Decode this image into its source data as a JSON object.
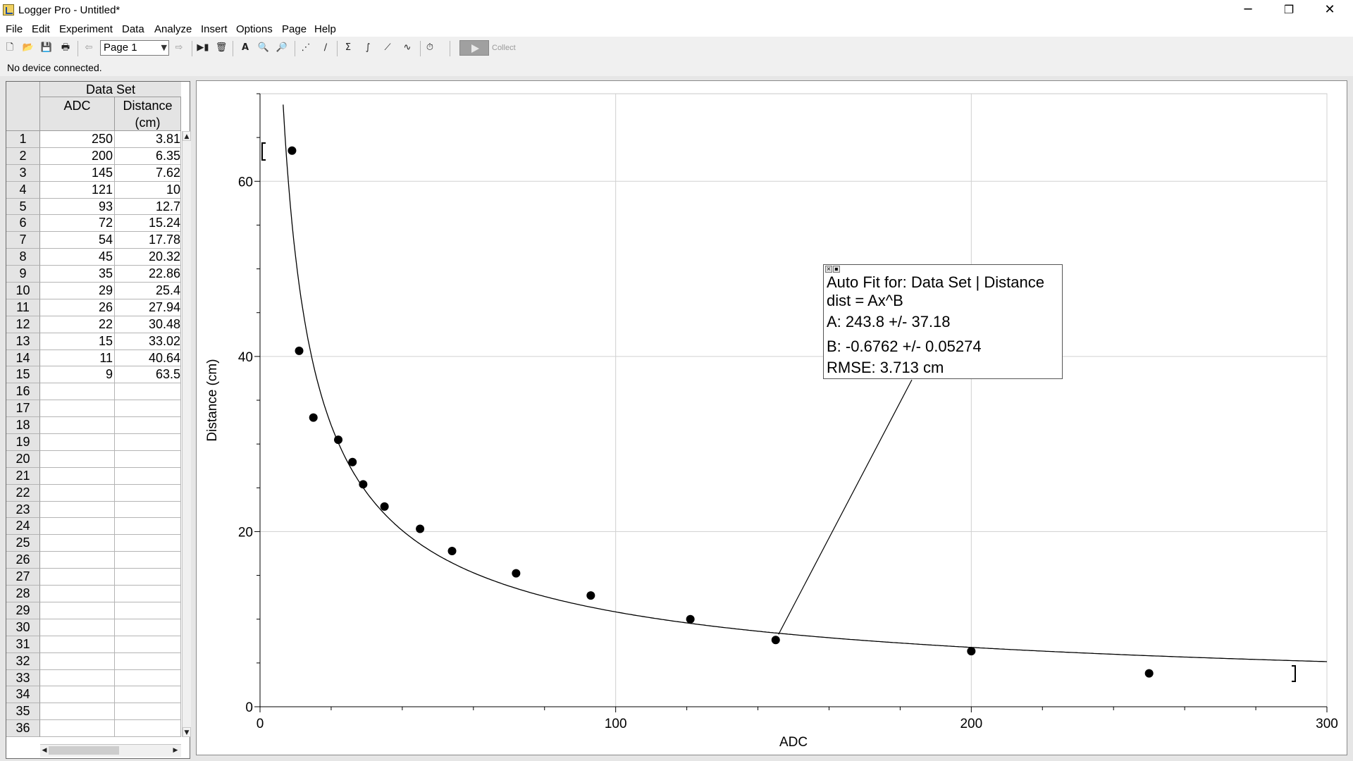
{
  "window": {
    "title": "Logger Pro - Untitled*",
    "minimize": "─",
    "maximize": "❐",
    "close": "✕"
  },
  "menu": [
    "File",
    "Edit",
    "Experiment",
    "Data",
    "Analyze",
    "Insert",
    "Options",
    "Page",
    "Help"
  ],
  "toolbar": {
    "page_select": "Page 1",
    "collect_label": "Collect"
  },
  "status": {
    "text": "No device connected."
  },
  "table": {
    "title": "Data Set",
    "columns": [
      "ADC",
      "Distance\n(cm)"
    ],
    "rows": [
      [
        "250",
        "3.81"
      ],
      [
        "200",
        "6.35"
      ],
      [
        "145",
        "7.62"
      ],
      [
        "121",
        "10"
      ],
      [
        "93",
        "12.7"
      ],
      [
        "72",
        "15.24"
      ],
      [
        "54",
        "17.78"
      ],
      [
        "45",
        "20.32"
      ],
      [
        "35",
        "22.86"
      ],
      [
        "29",
        "25.4"
      ],
      [
        "26",
        "27.94"
      ],
      [
        "22",
        "30.48"
      ],
      [
        "15",
        "33.02"
      ],
      [
        "11",
        "40.64"
      ],
      [
        "9",
        "63.5"
      ]
    ],
    "total_row_numbers": 36
  },
  "chart_data": {
    "type": "scatter",
    "xlabel": "ADC",
    "ylabel": "Distance (cm)",
    "xlim": [
      0,
      300
    ],
    "ylim": [
      0,
      70
    ],
    "x_ticks": [
      0,
      100,
      200,
      300
    ],
    "y_ticks": [
      0,
      20,
      40,
      60
    ],
    "x": [
      250,
      200,
      145,
      121,
      93,
      72,
      54,
      45,
      35,
      29,
      26,
      22,
      15,
      11,
      9
    ],
    "y": [
      3.81,
      6.35,
      7.62,
      10,
      12.7,
      15.24,
      17.78,
      20.32,
      22.86,
      25.4,
      27.94,
      30.48,
      33.02,
      40.64,
      63.5
    ],
    "fit": {
      "model": "power",
      "A": 243.8,
      "B": -0.6762
    },
    "fit_box": {
      "title": "Auto Fit for: Data Set | Distance",
      "equation": "dist = Ax^B",
      "param_a": "A: 243.8 +/- 37.18",
      "param_b": "B: -0.6762 +/- 0.05274",
      "rmse": "RMSE: 3.713 cm"
    },
    "grid": true
  }
}
